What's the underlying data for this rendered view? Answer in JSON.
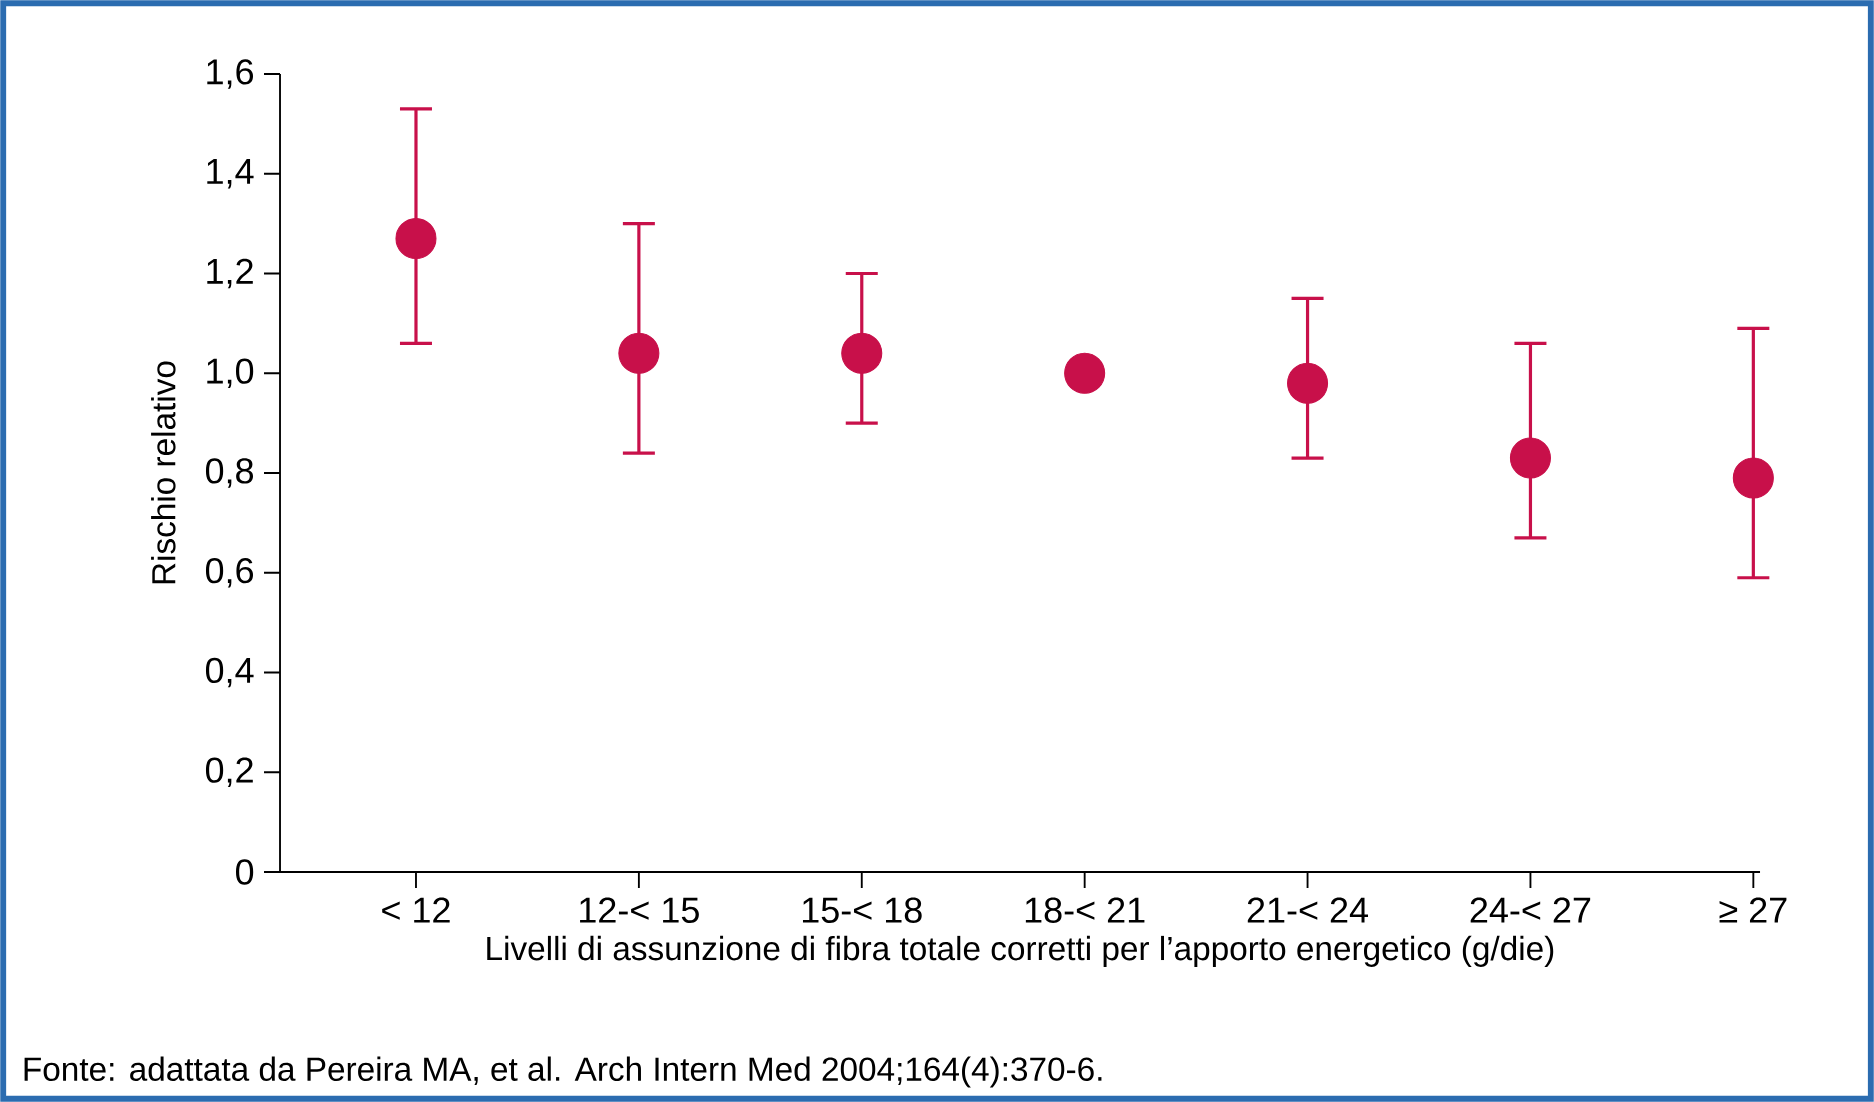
{
  "chart_data": {
    "type": "scatter",
    "xlabel": "Livelli di assunzione di fibra totale corretti per l’apporto energetico (g/die)",
    "ylabel": "Rischio relativo",
    "categories": [
      "< 12",
      "12-< 15",
      "15-< 18",
      "18-< 21",
      "21-< 24",
      "24-< 27",
      "≥ 27"
    ],
    "values": [
      1.27,
      1.04,
      1.04,
      1.0,
      0.98,
      0.83,
      0.79
    ],
    "errors": [
      [
        1.06,
        1.53
      ],
      [
        0.84,
        1.3
      ],
      [
        0.9,
        1.2
      ],
      null,
      [
        0.83,
        1.15
      ],
      [
        0.67,
        1.06
      ],
      [
        0.59,
        1.09
      ]
    ],
    "color": "#c8104a",
    "ylim": [
      0,
      1.6
    ],
    "yticks": [
      0,
      {
        "value": 0.2,
        "label": "0,2"
      },
      {
        "value": 0.4,
        "label": "0,4"
      },
      {
        "value": 0.6,
        "label": "0,6"
      },
      {
        "value": 0.8,
        "label": "0,8"
      },
      {
        "value": 1.0,
        "label": "1,0"
      },
      {
        "value": 1.2,
        "label": "1,2"
      },
      {
        "value": 1.4,
        "label": "1,4"
      },
      {
        "value": 1.6,
        "label": "1,6"
      }
    ],
    "annotations": [
      "Fonte: adattata da Pereira MA, et al. Arch Intern Med 2004;164(4):370-6."
    ]
  }
}
